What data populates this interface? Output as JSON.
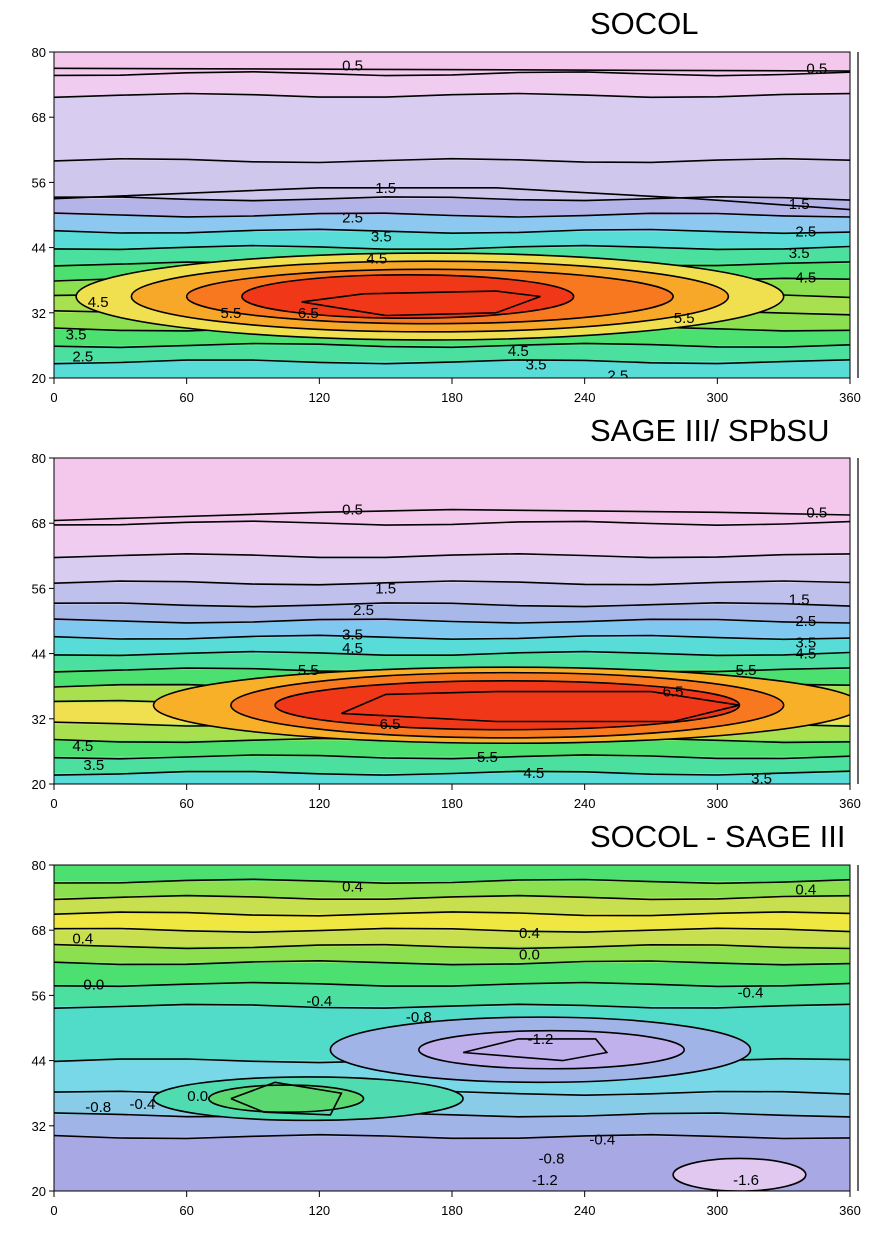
{
  "chart_data": [
    {
      "type": "contour",
      "title": "SOCOL",
      "xlim": [
        0,
        360
      ],
      "ylim": [
        20,
        80
      ],
      "x_ticks": [
        "0",
        "60",
        "120",
        "180",
        "240",
        "300",
        "360"
      ],
      "y_ticks": [
        "20",
        "32",
        "44",
        "56",
        "68",
        "80"
      ],
      "colormap": "rainbow",
      "bands": [
        {
          "y": 80,
          "color": "#f4c8ec"
        },
        {
          "y": 76,
          "color": "#f0cdf0"
        },
        {
          "y": 72,
          "color": "#d8cdf0"
        },
        {
          "y": 60,
          "color": "#d0c8ec"
        },
        {
          "y": 53,
          "color": "#b4b4e8"
        },
        {
          "y": 50,
          "color": "#8cc8f0"
        },
        {
          "y": 47,
          "color": "#58dcd8"
        },
        {
          "y": 44,
          "color": "#4ce0a0"
        },
        {
          "y": 41,
          "color": "#4ce070"
        },
        {
          "y": 38,
          "color": "#8ce050"
        },
        {
          "y": 35,
          "color": "#a8e050"
        },
        {
          "y": 32,
          "color": "#8ce050"
        },
        {
          "y": 29,
          "color": "#4ce070"
        },
        {
          "y": 26,
          "color": "#4ce0a0"
        },
        {
          "y": 23,
          "color": "#58dcd8"
        },
        {
          "y": 20,
          "color": "#8cc8f0"
        }
      ],
      "blobs": [
        {
          "cx": 170,
          "cy": 35,
          "rx": 160,
          "ry": 8,
          "color": "#f0e050"
        },
        {
          "cx": 170,
          "cy": 35,
          "rx": 135,
          "ry": 6.5,
          "color": "#f8a828"
        },
        {
          "cx": 170,
          "cy": 35,
          "rx": 110,
          "ry": 5,
          "color": "#f87820"
        },
        {
          "cx": 160,
          "cy": 35,
          "rx": 75,
          "ry": 4,
          "color": "#f03818"
        }
      ],
      "labels": [
        {
          "text": "0.5",
          "x": 135,
          "y": 77.5
        },
        {
          "text": "0.5",
          "x": 345,
          "y": 77
        },
        {
          "text": "1.5",
          "x": 150,
          "y": 55
        },
        {
          "text": "1.5",
          "x": 337,
          "y": 52
        },
        {
          "text": "2.5",
          "x": 135,
          "y": 49.5
        },
        {
          "text": "2.5",
          "x": 340,
          "y": 47
        },
        {
          "text": "3.5",
          "x": 148,
          "y": 46
        },
        {
          "text": "3.5",
          "x": 337,
          "y": 43
        },
        {
          "text": "4.5",
          "x": 146,
          "y": 42
        },
        {
          "text": "4.5",
          "x": 340,
          "y": 38.5
        },
        {
          "text": "4.5",
          "x": 20,
          "y": 34
        },
        {
          "text": "5.5",
          "x": 80,
          "y": 32
        },
        {
          "text": "6.5",
          "x": 115,
          "y": 32
        },
        {
          "text": "5.5",
          "x": 285,
          "y": 31
        },
        {
          "text": "3.5",
          "x": 10,
          "y": 28
        },
        {
          "text": "2.5",
          "x": 13,
          "y": 24
        },
        {
          "text": "4.5",
          "x": 210,
          "y": 25
        },
        {
          "text": "3.5",
          "x": 218,
          "y": 22.5
        },
        {
          "text": "2.5",
          "x": 255,
          "y": 20.5
        }
      ],
      "contours": [
        {
          "level": 0.5,
          "points": [
            [
              0,
              77
            ],
            [
              360,
              76.5
            ]
          ]
        },
        {
          "level": 1.5,
          "points": [
            [
              0,
              53
            ],
            [
              120,
              55
            ],
            [
              200,
              55
            ],
            [
              290,
              53
            ],
            [
              360,
              51
            ]
          ]
        },
        {
          "level": 6.5,
          "points": [
            [
              112,
              34
            ],
            [
              140,
              35.5
            ],
            [
              200,
              36
            ],
            [
              220,
              35
            ],
            [
              200,
              32
            ],
            [
              150,
              31.5
            ],
            [
              112,
              34
            ]
          ]
        }
      ]
    },
    {
      "type": "contour",
      "title": "SAGE III/ SPbSU",
      "xlim": [
        0,
        360
      ],
      "ylim": [
        20,
        80
      ],
      "x_ticks": [
        "0",
        "60",
        "120",
        "180",
        "240",
        "300",
        "360"
      ],
      "y_ticks": [
        "20",
        "32",
        "44",
        "56",
        "68",
        "80"
      ],
      "colormap": "rainbow",
      "bands": [
        {
          "y": 80,
          "color": "#f4c8ec"
        },
        {
          "y": 68,
          "color": "#f0cdf0"
        },
        {
          "y": 62,
          "color": "#d8cdf0"
        },
        {
          "y": 57,
          "color": "#c0c0ec"
        },
        {
          "y": 53,
          "color": "#a8b8e8"
        },
        {
          "y": 50,
          "color": "#80c8f0"
        },
        {
          "y": 47,
          "color": "#58dcd8"
        },
        {
          "y": 44,
          "color": "#4ce0a0"
        },
        {
          "y": 41,
          "color": "#4ce070"
        },
        {
          "y": 38,
          "color": "#a8e050"
        },
        {
          "y": 35,
          "color": "#f0e050"
        },
        {
          "y": 31,
          "color": "#a8e050"
        },
        {
          "y": 28,
          "color": "#4ce070"
        },
        {
          "y": 25,
          "color": "#4ce0a0"
        },
        {
          "y": 22,
          "color": "#58dcd8"
        },
        {
          "y": 20,
          "color": "#80c8f0"
        }
      ],
      "blobs": [
        {
          "cx": 205,
          "cy": 34.5,
          "rx": 160,
          "ry": 7,
          "color": "#f8b028"
        },
        {
          "cx": 205,
          "cy": 34.5,
          "rx": 125,
          "ry": 6,
          "color": "#f87820"
        },
        {
          "cx": 205,
          "cy": 34.5,
          "rx": 105,
          "ry": 4.5,
          "color": "#f03818"
        }
      ],
      "labels": [
        {
          "text": "0.5",
          "x": 135,
          "y": 70.5
        },
        {
          "text": "0.5",
          "x": 345,
          "y": 70
        },
        {
          "text": "1.5",
          "x": 150,
          "y": 56
        },
        {
          "text": "1.5",
          "x": 337,
          "y": 54
        },
        {
          "text": "2.5",
          "x": 140,
          "y": 52
        },
        {
          "text": "2.5",
          "x": 340,
          "y": 50
        },
        {
          "text": "3.5",
          "x": 135,
          "y": 47.5
        },
        {
          "text": "3.5",
          "x": 340,
          "y": 46
        },
        {
          "text": "4.5",
          "x": 135,
          "y": 45
        },
        {
          "text": "4.5",
          "x": 340,
          "y": 44
        },
        {
          "text": "5.5",
          "x": 115,
          "y": 41
        },
        {
          "text": "5.5",
          "x": 313,
          "y": 41
        },
        {
          "text": "6.5",
          "x": 280,
          "y": 37
        },
        {
          "text": "6.5",
          "x": 152,
          "y": 31
        },
        {
          "text": "4.5",
          "x": 13,
          "y": 27
        },
        {
          "text": "3.5",
          "x": 18,
          "y": 23.5
        },
        {
          "text": "5.5",
          "x": 196,
          "y": 25
        },
        {
          "text": "4.5",
          "x": 217,
          "y": 22
        },
        {
          "text": "3.5",
          "x": 320,
          "y": 21
        }
      ],
      "contours": [
        {
          "level": 0.5,
          "points": [
            [
              0,
              68.5
            ],
            [
              120,
              70
            ],
            [
              180,
              70.5
            ],
            [
              300,
              70
            ],
            [
              360,
              69.5
            ]
          ]
        },
        {
          "level": 6.5,
          "points": [
            [
              130,
              33
            ],
            [
              150,
              36.5
            ],
            [
              200,
              37
            ],
            [
              270,
              37
            ],
            [
              310,
              34.5
            ],
            [
              280,
              31.5
            ],
            [
              200,
              31.5
            ],
            [
              130,
              33
            ]
          ]
        }
      ]
    },
    {
      "type": "contour",
      "title": "SOCOL - SAGE III",
      "xlim": [
        0,
        360
      ],
      "ylim": [
        20,
        80
      ],
      "x_ticks": [
        "0",
        "60",
        "120",
        "180",
        "240",
        "300",
        "360"
      ],
      "y_ticks": [
        "20",
        "32",
        "44",
        "56",
        "68",
        "80"
      ],
      "colormap": "rainbow",
      "bands": [
        {
          "y": 80,
          "color": "#4ce070"
        },
        {
          "y": 77,
          "color": "#8ce050"
        },
        {
          "y": 74,
          "color": "#c8e050"
        },
        {
          "y": 71,
          "color": "#f0e840"
        },
        {
          "y": 68,
          "color": "#c8e050"
        },
        {
          "y": 65,
          "color": "#8ce050"
        },
        {
          "y": 62,
          "color": "#4ce070"
        },
        {
          "y": 58,
          "color": "#4ce0a0"
        },
        {
          "y": 54,
          "color": "#50dcc8"
        },
        {
          "y": 44,
          "color": "#78d8e8"
        },
        {
          "y": 38,
          "color": "#88cce8"
        },
        {
          "y": 34,
          "color": "#a0b4e8"
        },
        {
          "y": 30,
          "color": "#a8a8e4"
        },
        {
          "y": 20,
          "color": "#b0a8e4"
        }
      ],
      "blobs": [
        {
          "cx": 220,
          "cy": 46,
          "rx": 95,
          "ry": 6,
          "color": "#a0b4e8"
        },
        {
          "cx": 225,
          "cy": 46,
          "rx": 60,
          "ry": 3.5,
          "color": "#c0b0ec"
        },
        {
          "cx": 115,
          "cy": 37,
          "rx": 70,
          "ry": 4,
          "color": "#50dcb0"
        },
        {
          "cx": 105,
          "cy": 37,
          "rx": 35,
          "ry": 2.5,
          "color": "#5cd870"
        },
        {
          "cx": 310,
          "cy": 23,
          "rx": 30,
          "ry": 3,
          "color": "#e0c8f0"
        }
      ],
      "labels": [
        {
          "text": "0.4",
          "x": 135,
          "y": 76
        },
        {
          "text": "0.4",
          "x": 340,
          "y": 75.5
        },
        {
          "text": "0.4",
          "x": 13,
          "y": 66.5
        },
        {
          "text": "0.4",
          "x": 215,
          "y": 67.5
        },
        {
          "text": "0.0",
          "x": 215,
          "y": 63.5
        },
        {
          "text": "0.0",
          "x": 18,
          "y": 58
        },
        {
          "text": "-0.4",
          "x": 120,
          "y": 55
        },
        {
          "text": "-0.4",
          "x": 315,
          "y": 56.5
        },
        {
          "text": "-0.8",
          "x": 165,
          "y": 52
        },
        {
          "text": "-1.2",
          "x": 220,
          "y": 48
        },
        {
          "text": "0.0",
          "x": 65,
          "y": 37.5
        },
        {
          "text": "-0.4",
          "x": 40,
          "y": 36
        },
        {
          "text": "-0.8",
          "x": 20,
          "y": 35.5
        },
        {
          "text": "-0.4",
          "x": 248,
          "y": 29.5
        },
        {
          "text": "-0.8",
          "x": 225,
          "y": 26
        },
        {
          "text": "-1.2",
          "x": 222,
          "y": 22
        },
        {
          "text": "-1.6",
          "x": 313,
          "y": 22
        }
      ],
      "contours": [
        {
          "level": -1.2,
          "points": [
            [
              185,
              45.5
            ],
            [
              210,
              48
            ],
            [
              245,
              48
            ],
            [
              250,
              45.5
            ],
            [
              230,
              44
            ],
            [
              185,
              45.5
            ]
          ]
        },
        {
          "level": 0.0,
          "points": [
            [
              80,
              37
            ],
            [
              100,
              40
            ],
            [
              130,
              38
            ],
            [
              125,
              34
            ],
            [
              95,
              34.5
            ],
            [
              80,
              37
            ]
          ]
        }
      ]
    }
  ]
}
